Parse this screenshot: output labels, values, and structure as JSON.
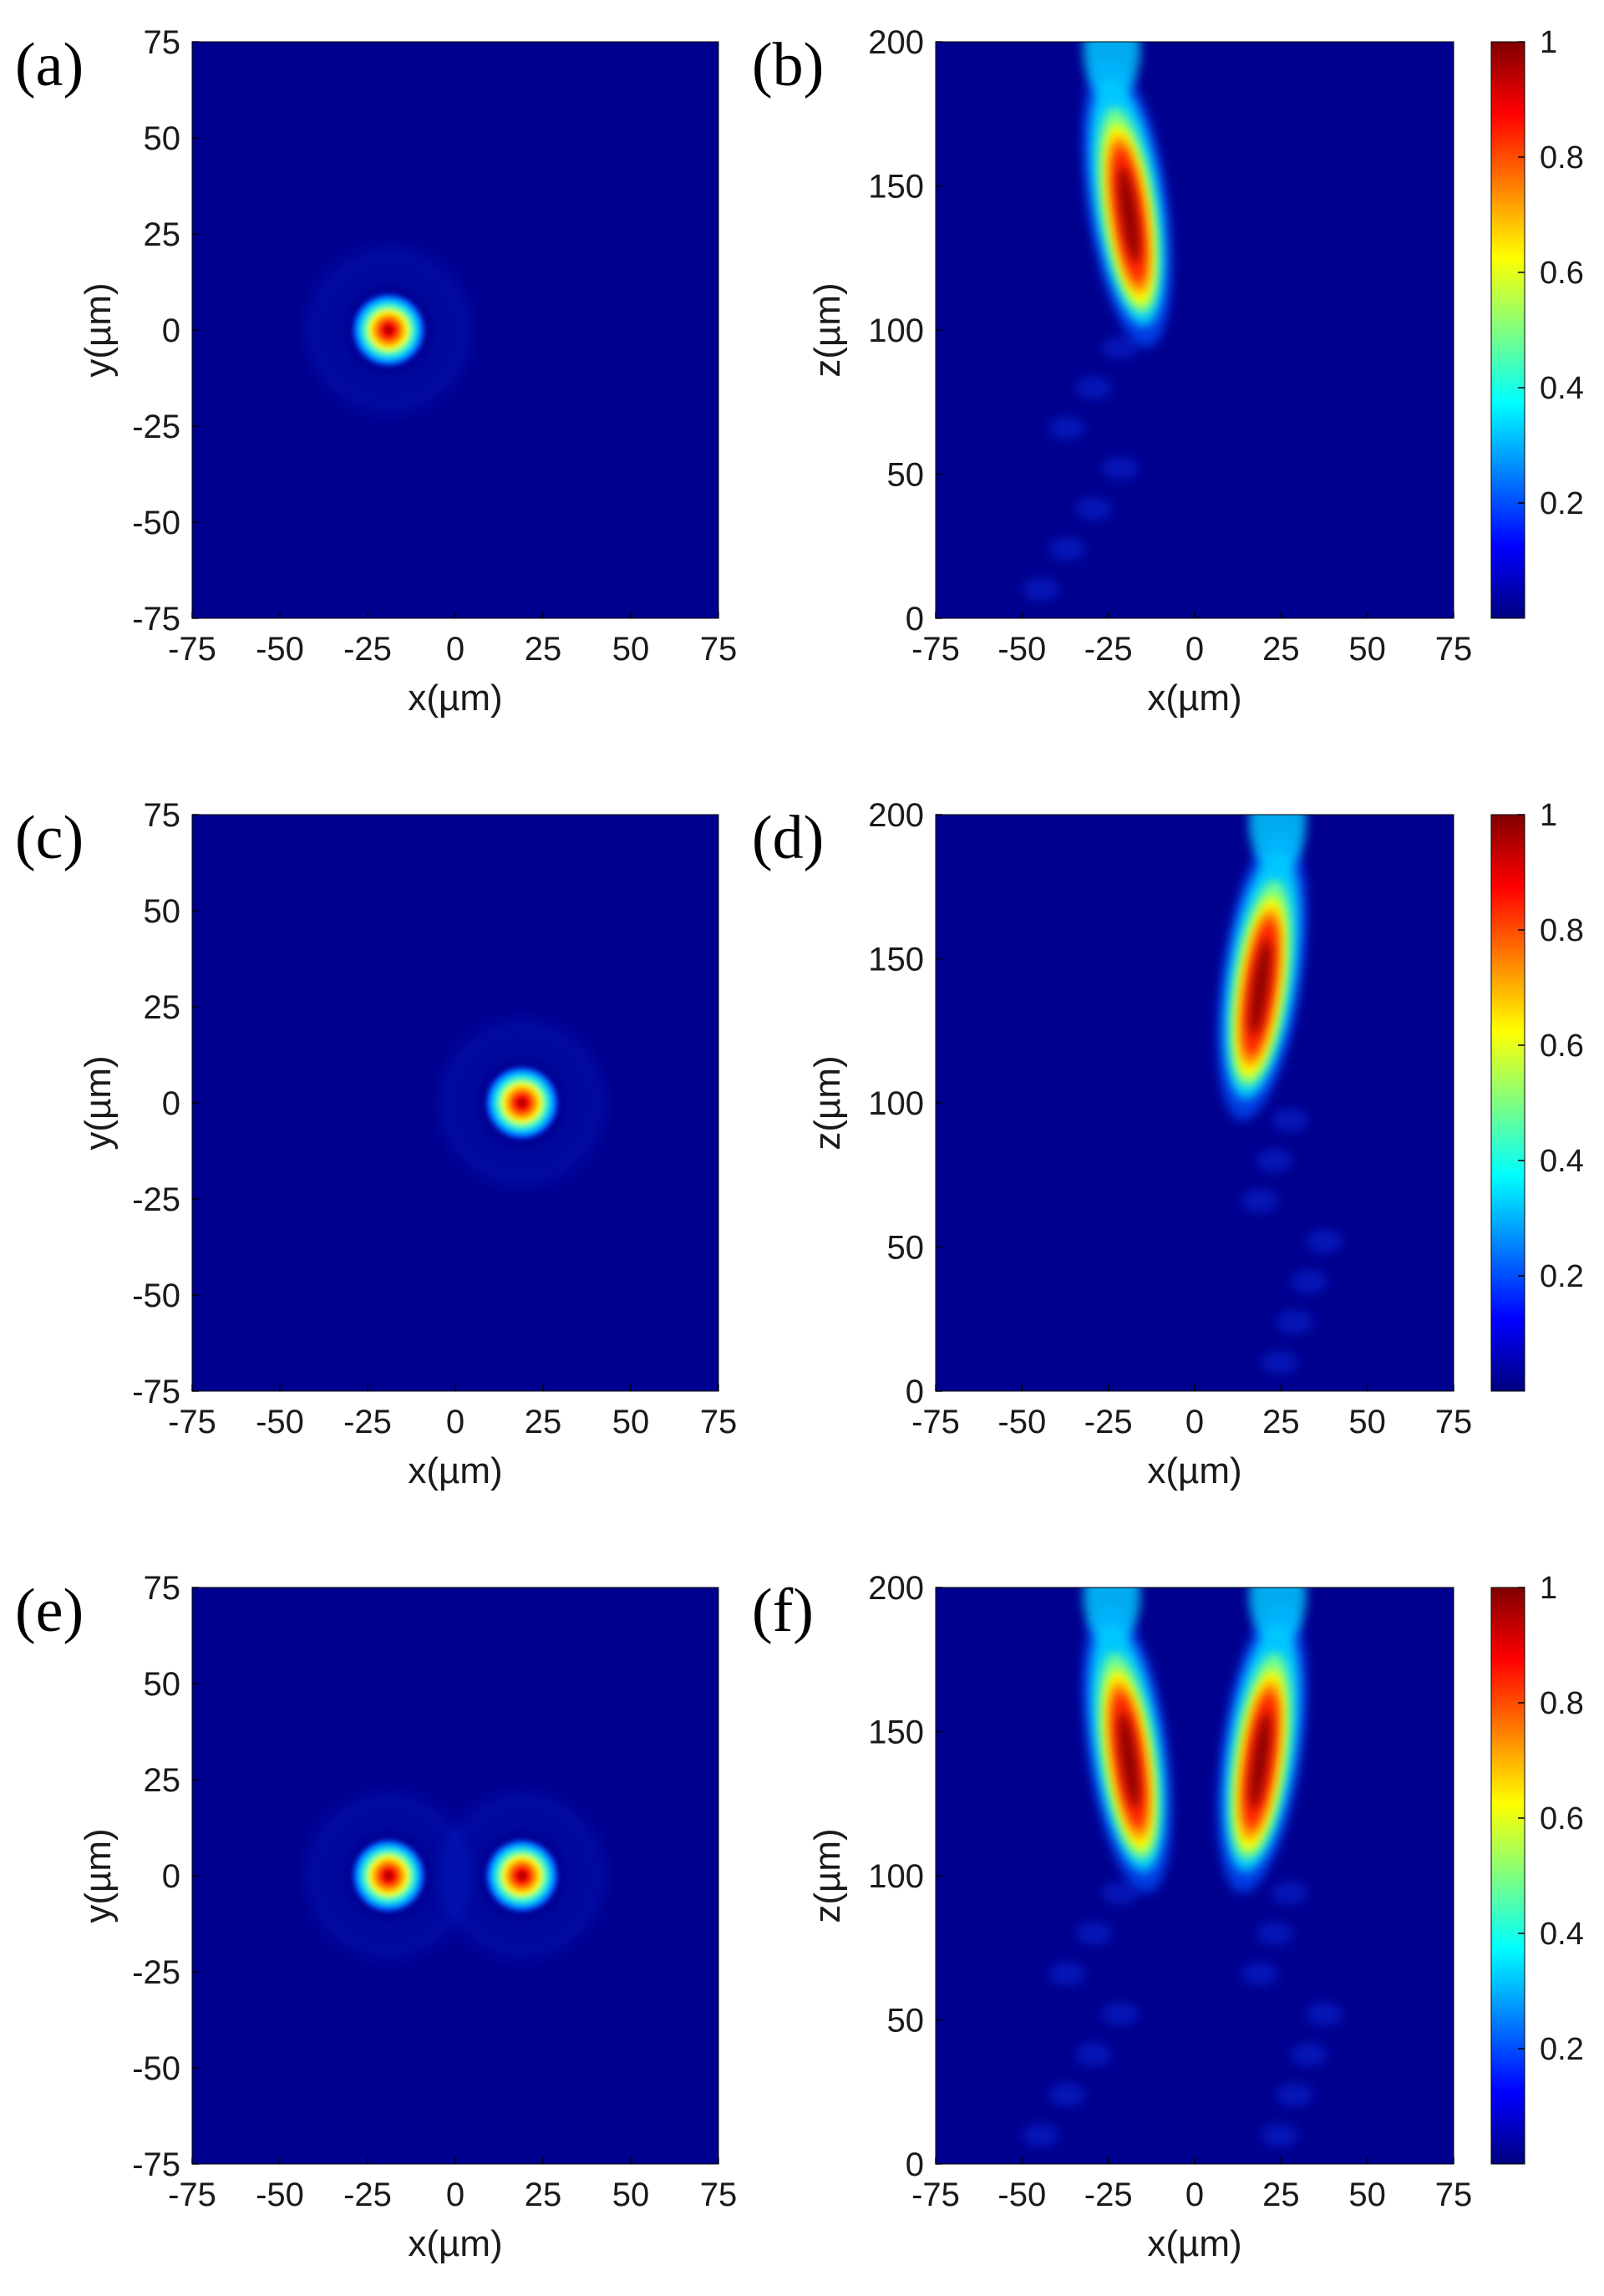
{
  "chart_data": [
    {
      "panel": "(a)",
      "type": "heatmap",
      "xlabel": "x(µm)",
      "ylabel": "y(µm)",
      "xlim": [
        -75,
        75
      ],
      "ylim": [
        -75,
        75
      ],
      "xticks": [
        "-75",
        "-50",
        "-25",
        "0",
        "25",
        "50",
        "75"
      ],
      "yticks": [
        "-75",
        "-50",
        "-25",
        "0",
        "25",
        "50",
        "75"
      ],
      "spots": [
        {
          "x": -19,
          "y": 0,
          "radius": 7,
          "peak": 1
        }
      ],
      "colormap": "jet"
    },
    {
      "panel": "(b)",
      "type": "heatmap",
      "xlabel": "x(µm)",
      "ylabel": "z(µm)",
      "xlim": [
        -75,
        75
      ],
      "ylim": [
        0,
        200
      ],
      "xticks": [
        "-75",
        "-50",
        "-25",
        "0",
        "25",
        "50",
        "75"
      ],
      "yticks": [
        "0",
        "50",
        "100",
        "150",
        "200"
      ],
      "beams": [
        {
          "x_at_top": -24,
          "x_at_focus": -19,
          "z_focus": 140,
          "slope_x_per_z": 0.12,
          "peak": 1
        }
      ],
      "colormap": "jet",
      "colorbar": {
        "min": 0,
        "max": 1,
        "ticks": [
          "0.2",
          "0.4",
          "0.6",
          "0.8",
          "1"
        ]
      }
    },
    {
      "panel": "(c)",
      "type": "heatmap",
      "xlabel": "x(µm)",
      "ylabel": "y(µm)",
      "xlim": [
        -75,
        75
      ],
      "ylim": [
        -75,
        75
      ],
      "xticks": [
        "-75",
        "-50",
        "-25",
        "0",
        "25",
        "50",
        "75"
      ],
      "yticks": [
        "-75",
        "-50",
        "-25",
        "0",
        "25",
        "50",
        "75"
      ],
      "spots": [
        {
          "x": 19,
          "y": 0,
          "radius": 7,
          "peak": 1
        }
      ],
      "colormap": "jet"
    },
    {
      "panel": "(d)",
      "type": "heatmap",
      "xlabel": "x(µm)",
      "ylabel": "z(µm)",
      "xlim": [
        -75,
        75
      ],
      "ylim": [
        0,
        200
      ],
      "xticks": [
        "-75",
        "-50",
        "-25",
        "0",
        "25",
        "50",
        "75"
      ],
      "yticks": [
        "0",
        "50",
        "100",
        "150",
        "200"
      ],
      "beams": [
        {
          "x_at_top": 24,
          "x_at_focus": 19,
          "z_focus": 140,
          "slope_x_per_z": -0.12,
          "peak": 1
        }
      ],
      "colormap": "jet",
      "colorbar": {
        "min": 0,
        "max": 1,
        "ticks": [
          "0.2",
          "0.4",
          "0.6",
          "0.8",
          "1"
        ]
      }
    },
    {
      "panel": "(e)",
      "type": "heatmap",
      "xlabel": "x(µm)",
      "ylabel": "y(µm)",
      "xlim": [
        -75,
        75
      ],
      "ylim": [
        -75,
        75
      ],
      "xticks": [
        "-75",
        "-50",
        "-25",
        "0",
        "25",
        "50",
        "75"
      ],
      "yticks": [
        "-75",
        "-50",
        "-25",
        "0",
        "25",
        "50",
        "75"
      ],
      "spots": [
        {
          "x": -19,
          "y": 0,
          "radius": 7,
          "peak": 1
        },
        {
          "x": 19,
          "y": 0,
          "radius": 7,
          "peak": 1
        }
      ],
      "colormap": "jet"
    },
    {
      "panel": "(f)",
      "type": "heatmap",
      "xlabel": "x(µm)",
      "ylabel": "z(µm)",
      "xlim": [
        -75,
        75
      ],
      "ylim": [
        0,
        200
      ],
      "xticks": [
        "-75",
        "-50",
        "-25",
        "0",
        "25",
        "50",
        "75"
      ],
      "yticks": [
        "0",
        "50",
        "100",
        "150",
        "200"
      ],
      "beams": [
        {
          "x_at_top": -24,
          "x_at_focus": -19,
          "z_focus": 140,
          "slope_x_per_z": 0.12,
          "peak": 1
        },
        {
          "x_at_top": 24,
          "x_at_focus": 19,
          "z_focus": 140,
          "slope_x_per_z": -0.12,
          "peak": 1
        }
      ],
      "colormap": "jet",
      "colorbar": {
        "min": 0,
        "max": 1,
        "ticks": [
          "0.2",
          "0.4",
          "0.6",
          "0.8",
          "1"
        ]
      }
    }
  ],
  "colors": {
    "background_field": "#00008f",
    "jet_stops": [
      "#00007f",
      "#0000ff",
      "#007fff",
      "#00ffff",
      "#7fff7f",
      "#ffff00",
      "#ff7f00",
      "#ff0000",
      "#7f0000"
    ]
  }
}
